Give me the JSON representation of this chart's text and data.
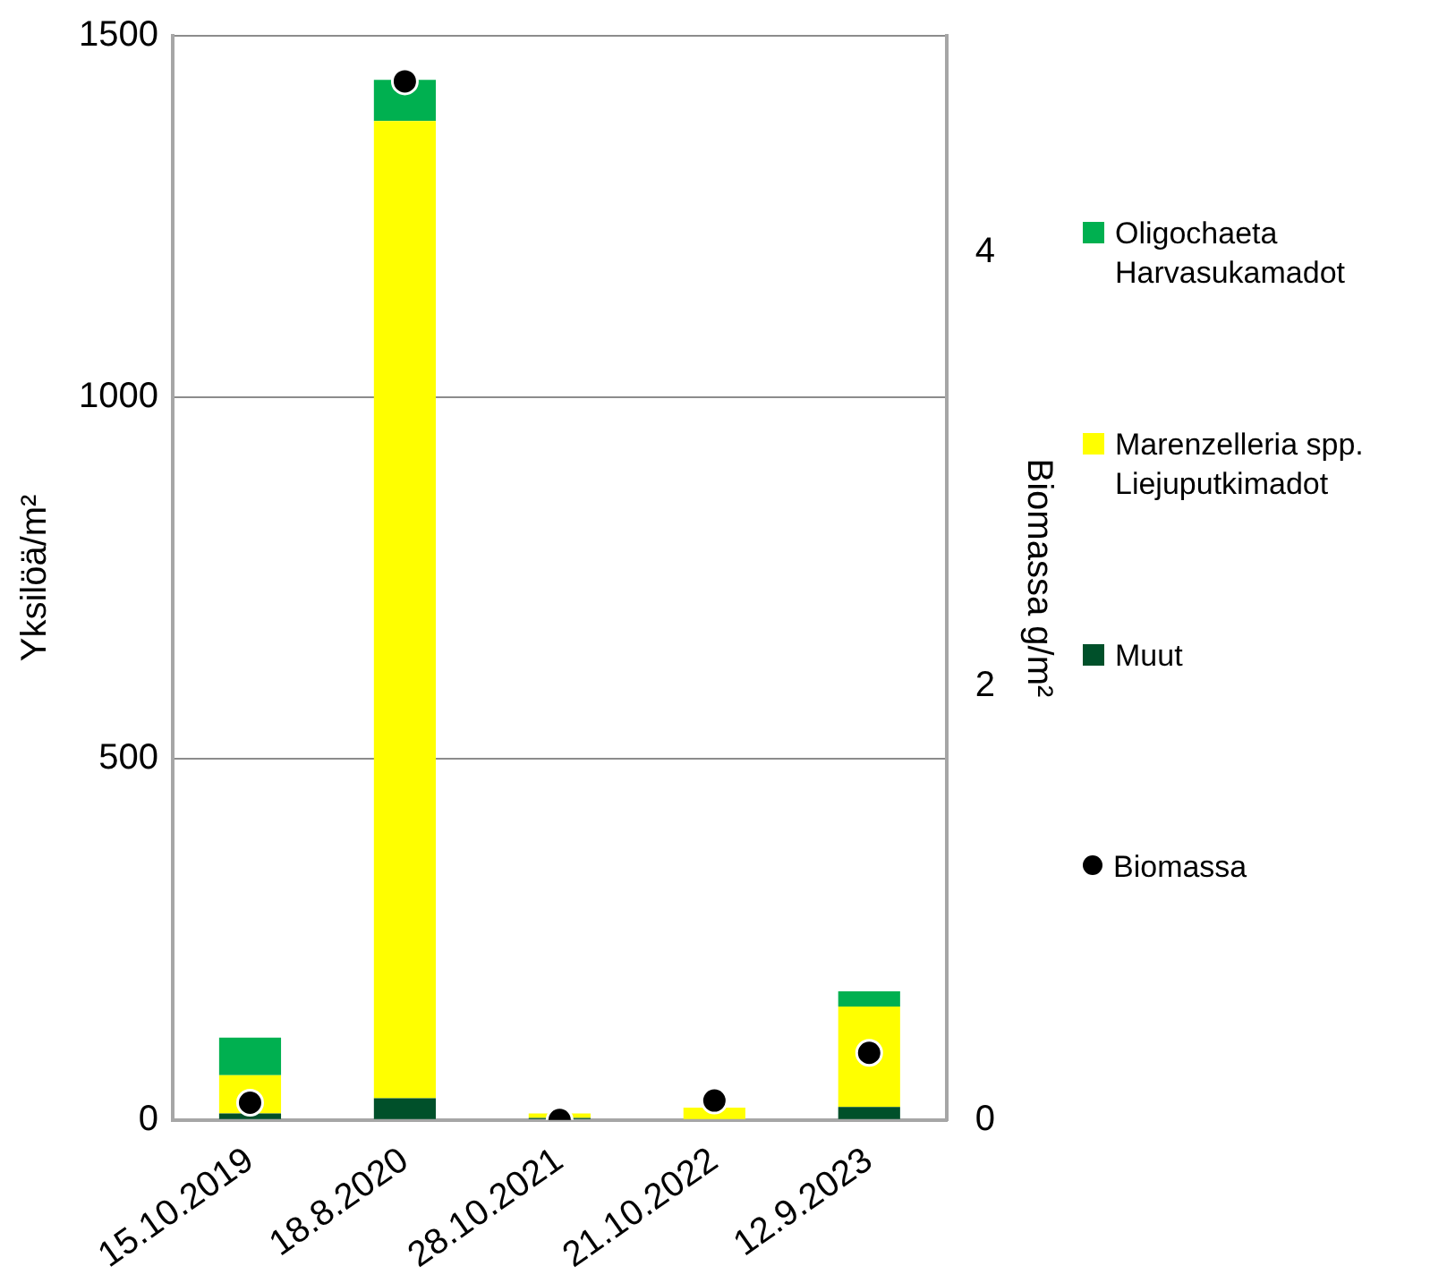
{
  "chart_data": {
    "type": "bar",
    "stacked": true,
    "ylabel": "Yksilöä/m²",
    "y2label": "Biomassa g/m²",
    "categories": [
      "15.10.2019",
      "18.8.2020",
      "28.10.2021",
      "21.10.2022",
      "12.9.2023"
    ],
    "series": [
      {
        "name": "Muut",
        "color": "#00502a",
        "values": [
          9,
          30,
          3,
          null,
          18
        ]
      },
      {
        "name": "Marenzelleria spp.\nLiejuputkimadot",
        "color": "#ffff00",
        "values": [
          53,
          1352,
          6,
          17,
          139
        ]
      },
      {
        "name": "Oligochaeta\nHarvasukamadot",
        "color": "#00b050",
        "values": [
          52,
          57,
          0,
          0,
          21
        ]
      },
      {
        "name": "Biomassa",
        "type": "scatter",
        "axis": "y2",
        "marker": "circle",
        "color": "#000000",
        "x": [
          "15.10.2019",
          "18.8.2020",
          "28.10.2021",
          "21.10.2022",
          "12.9.2023"
        ],
        "values": [
          0.08,
          4.79,
          0,
          0.09,
          0.31
        ]
      }
    ],
    "ylim": [
      0,
      1500
    ],
    "yticks": [
      0,
      500,
      1000,
      1500
    ],
    "y2lim": [
      0,
      5
    ],
    "y2ticks": [
      0,
      2,
      4
    ],
    "grid": "y",
    "legend": "right"
  }
}
